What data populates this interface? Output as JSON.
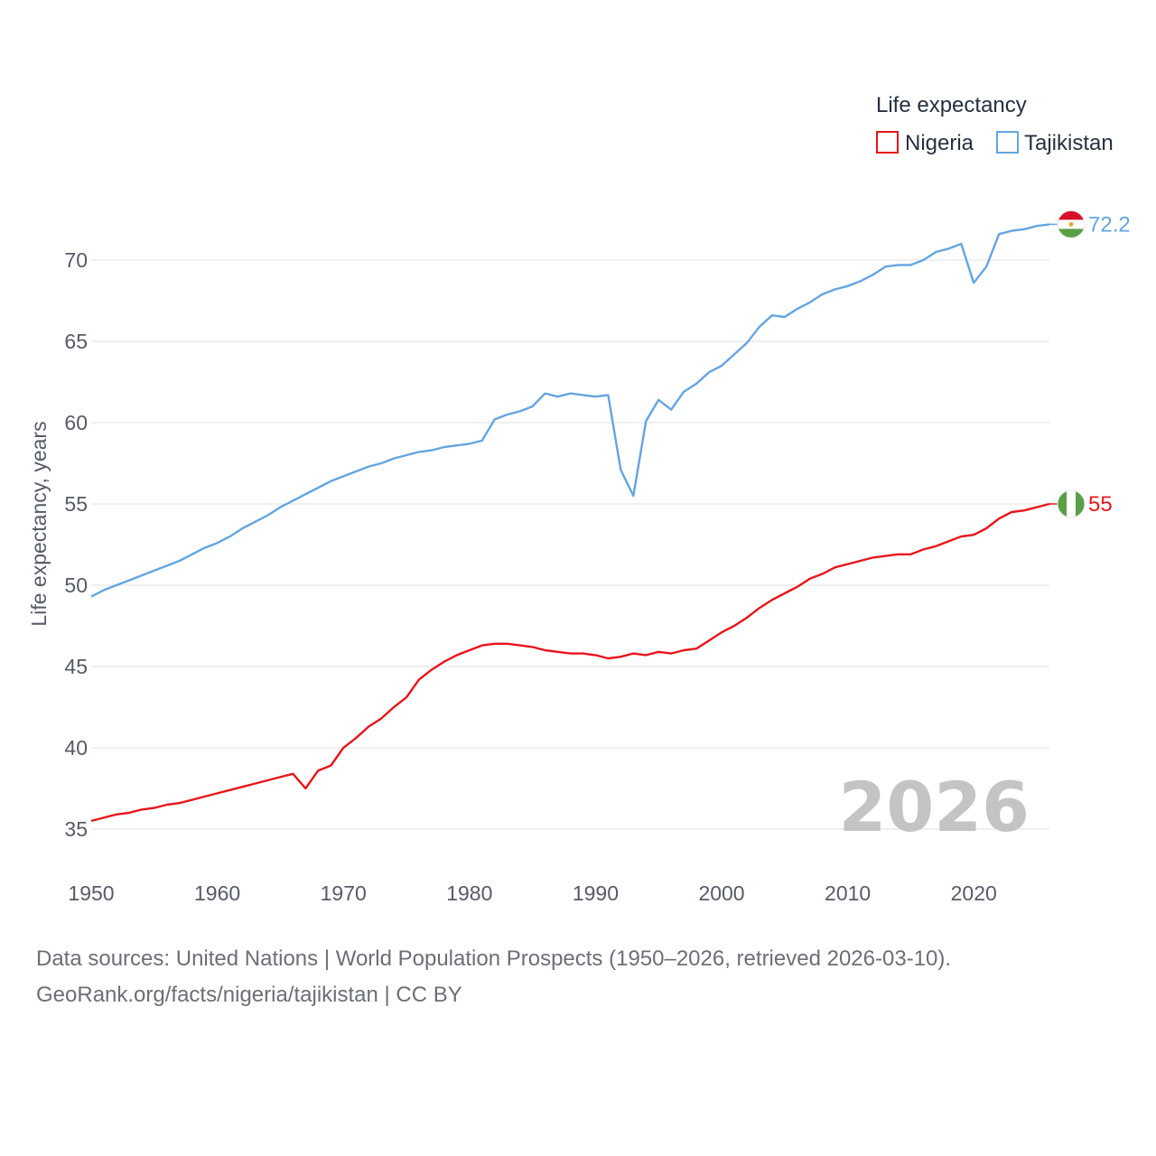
{
  "chart_data": {
    "type": "line",
    "ylabel": "Life expectancy, years",
    "xlabel": "",
    "xlim": [
      1950,
      2026
    ],
    "ylim": [
      32.5,
      74
    ],
    "xticks": [
      1950,
      1960,
      1970,
      1980,
      1990,
      2000,
      2010,
      2020
    ],
    "yticks": [
      35,
      40,
      45,
      50,
      55,
      60,
      65,
      70
    ],
    "grid": true,
    "legend_title": "Life expectancy",
    "legend_position": "top-right",
    "year_watermark": "2026",
    "x": [
      1950,
      1951,
      1952,
      1953,
      1954,
      1955,
      1956,
      1957,
      1958,
      1959,
      1960,
      1961,
      1962,
      1963,
      1964,
      1965,
      1966,
      1967,
      1968,
      1969,
      1970,
      1971,
      1972,
      1973,
      1974,
      1975,
      1976,
      1977,
      1978,
      1979,
      1980,
      1981,
      1982,
      1983,
      1984,
      1985,
      1986,
      1987,
      1988,
      1989,
      1990,
      1991,
      1992,
      1993,
      1994,
      1995,
      1996,
      1997,
      1998,
      1999,
      2000,
      2001,
      2002,
      2003,
      2004,
      2005,
      2006,
      2007,
      2008,
      2009,
      2010,
      2011,
      2012,
      2013,
      2014,
      2015,
      2016,
      2017,
      2018,
      2019,
      2020,
      2021,
      2022,
      2023,
      2024,
      2025,
      2026
    ],
    "series": [
      {
        "name": "Nigeria",
        "color": "#e8151b",
        "end_label": "55",
        "flag": "nigeria",
        "values": [
          35.5,
          35.7,
          35.9,
          36.0,
          36.2,
          36.3,
          36.5,
          36.6,
          36.8,
          37.0,
          37.2,
          37.4,
          37.6,
          37.8,
          38.0,
          38.2,
          38.4,
          37.5,
          38.6,
          38.9,
          40.0,
          40.6,
          41.3,
          41.8,
          42.5,
          43.1,
          44.2,
          44.8,
          45.3,
          45.7,
          46.0,
          46.3,
          46.4,
          46.4,
          46.3,
          46.2,
          46.0,
          45.9,
          45.8,
          45.8,
          45.7,
          45.5,
          45.6,
          45.8,
          45.7,
          45.9,
          45.8,
          46.0,
          46.1,
          46.6,
          47.1,
          47.5,
          48.0,
          48.6,
          49.1,
          49.5,
          49.9,
          50.4,
          50.7,
          51.1,
          51.3,
          51.5,
          51.7,
          51.8,
          51.9,
          51.9,
          52.2,
          52.4,
          52.7,
          53.0,
          53.1,
          53.5,
          54.1,
          54.5,
          54.6,
          54.8,
          55.0
        ]
      },
      {
        "name": "Tajikistan",
        "color": "#64a5e0",
        "end_label": "72.2",
        "flag": "tajikistan",
        "values": [
          49.3,
          49.7,
          50.0,
          50.3,
          50.6,
          50.9,
          51.2,
          51.5,
          51.9,
          52.3,
          52.6,
          53.0,
          53.5,
          53.9,
          54.3,
          54.8,
          55.2,
          55.6,
          56.0,
          56.4,
          56.7,
          57.0,
          57.3,
          57.5,
          57.8,
          58.0,
          58.2,
          58.3,
          58.5,
          58.6,
          58.7,
          58.9,
          60.2,
          60.5,
          60.7,
          61.0,
          61.8,
          61.6,
          61.8,
          61.7,
          61.6,
          61.7,
          57.1,
          55.5,
          60.1,
          61.4,
          60.8,
          61.9,
          62.4,
          63.1,
          63.5,
          64.2,
          64.9,
          65.9,
          66.6,
          66.5,
          67.0,
          67.4,
          67.9,
          68.2,
          68.4,
          68.7,
          69.1,
          69.6,
          69.7,
          69.7,
          70.0,
          70.5,
          70.7,
          71.0,
          68.6,
          69.6,
          71.6,
          71.8,
          71.9,
          72.1,
          72.2
        ]
      }
    ]
  },
  "footer": {
    "line1": "Data sources: United Nations | World Population Prospects (1950–2026, retrieved 2026-03-10).",
    "line2": "GeoRank.org/facts/nigeria/tajikistan | CC BY"
  }
}
